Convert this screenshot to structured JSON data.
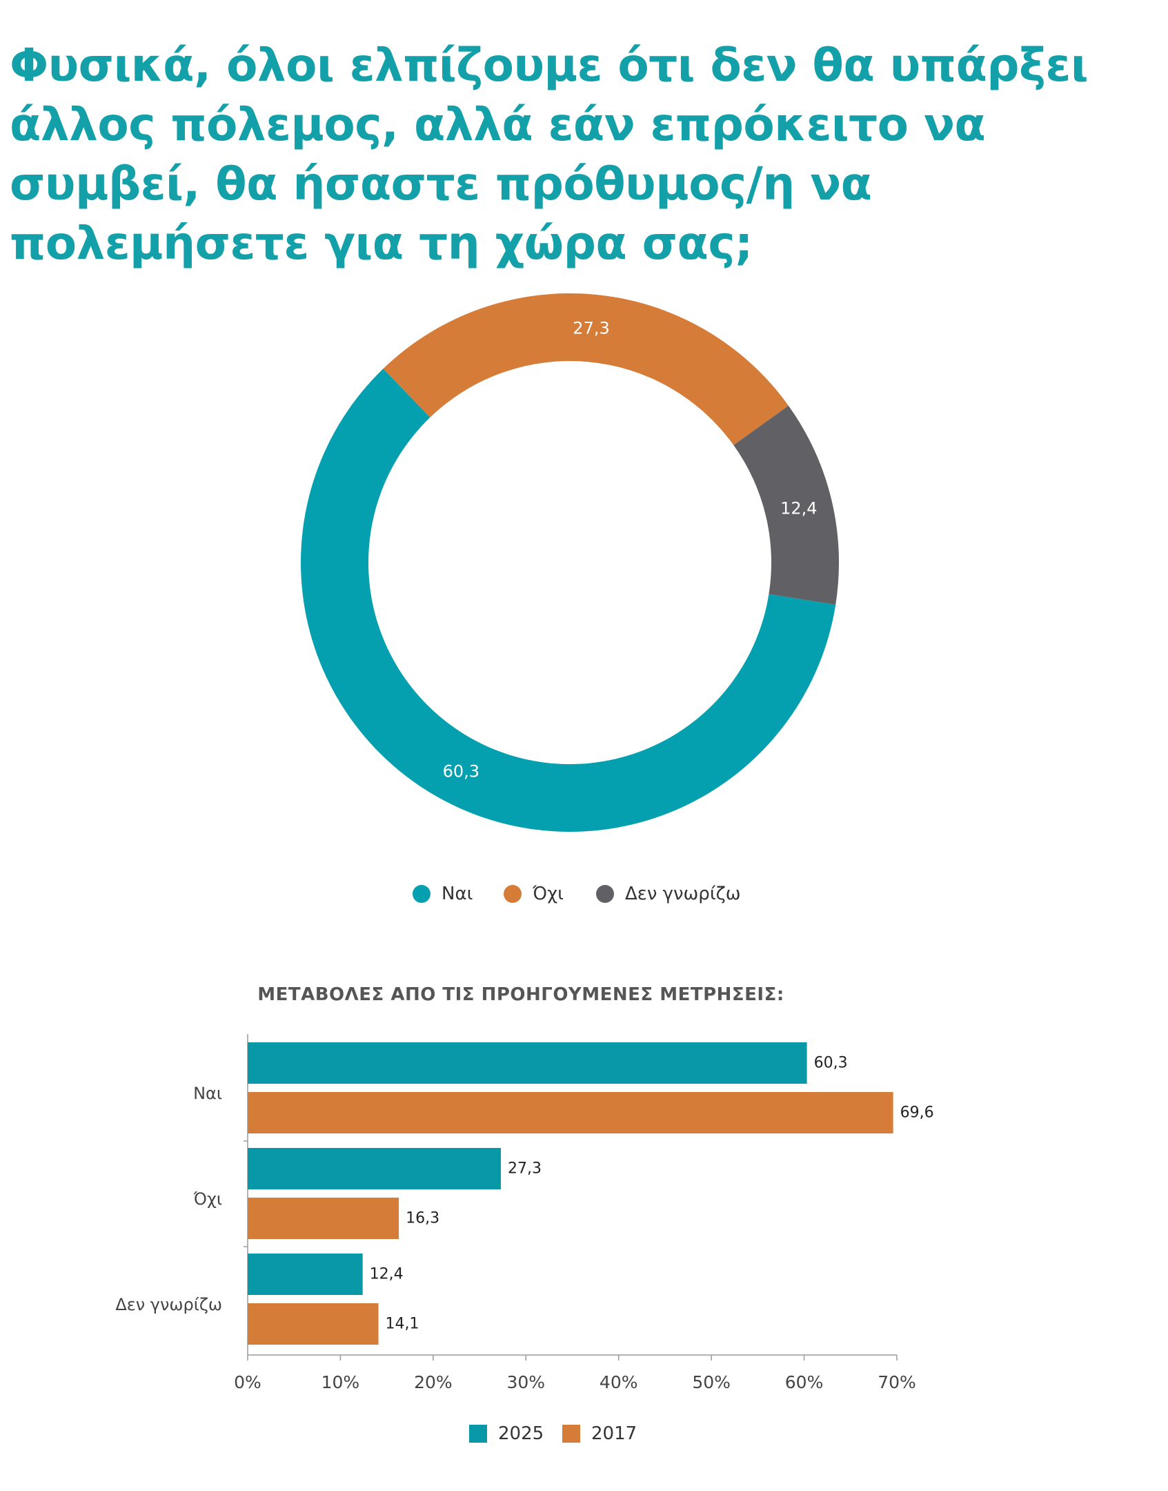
{
  "title": "Φυσικά, όλοι ελπίζουμε ότι δεν θα υπάρξει άλλος πόλεμος, αλλά εάν επρόκειτο να συμβεί, θα ήσαστε πρόθυμος/η να πολεμήσετε για τη χώρα σας;",
  "colors": {
    "teal": "#05a0af",
    "orange": "#d57c38",
    "gray": "#616165",
    "bar_teal": "#0898a8",
    "title": "#14a0a9"
  },
  "chart_data": [
    {
      "type": "pie",
      "labels": [
        "Ναι",
        "Όχι",
        "Δεν γνωρίζω"
      ],
      "values": [
        60.3,
        27.3,
        12.4
      ],
      "value_labels": [
        "60,3",
        "27,3",
        "12,4"
      ],
      "colors": [
        "#05a0af",
        "#d57c38",
        "#616165"
      ],
      "donut": true,
      "legend": "bottom"
    },
    {
      "type": "bar",
      "orientation": "horizontal",
      "title": "ΜΕΤΑΒΟΛΕΣ ΑΠΟ ΤΙΣ ΠΡΟΗΓΟΥΜΕΝΕΣ ΜΕΤΡΗΣΕΙΣ:",
      "categories": [
        "Ναι",
        "Όχι",
        "Δεν γνωρίζω"
      ],
      "series": [
        {
          "name": "2025",
          "values": [
            60.3,
            27.3,
            12.4
          ],
          "value_labels": [
            "60,3",
            "27,3",
            "12,4"
          ],
          "color": "#0898a8"
        },
        {
          "name": "2017",
          "values": [
            69.6,
            16.3,
            14.1
          ],
          "value_labels": [
            "69,6",
            "16,3",
            "14,1"
          ],
          "color": "#d57c38"
        }
      ],
      "xlim": [
        0,
        70
      ],
      "xticks": [
        0,
        10,
        20,
        30,
        40,
        50,
        60,
        70
      ],
      "xtick_labels": [
        "0%",
        "10%",
        "20%",
        "30%",
        "40%",
        "50%",
        "60%",
        "70%"
      ],
      "grid": false,
      "legend": "bottom"
    }
  ]
}
